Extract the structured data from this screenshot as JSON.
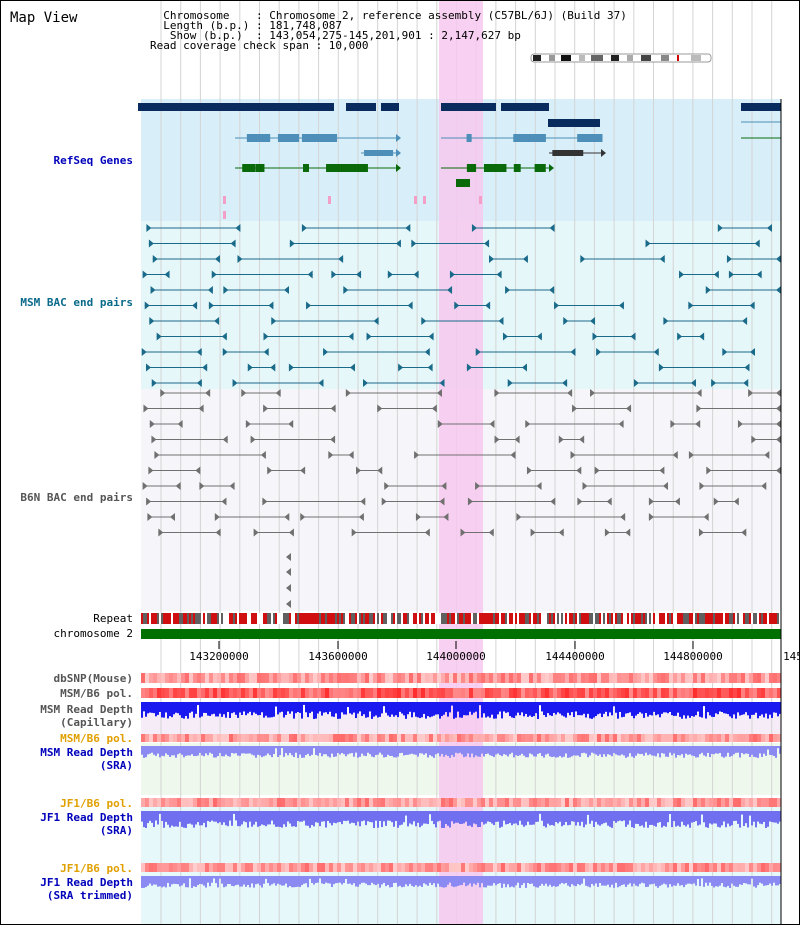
{
  "title": "Map View",
  "info": {
    "lines": [
      "  Chromosome    : Chromosome 2, reference assembly (C57BL/6J) (Build 37)",
      "  Length (b.p.) : 181,748,087",
      "   Show (b.p.)  : 143,054,275-145,201,901 : 2,147,627 bp",
      "Read coverage check span : 10,000"
    ]
  },
  "tracks": {
    "refseq": "RefSeq Genes",
    "msm_bac": "MSM BAC end pairs",
    "b6n_bac": "B6N BAC end pairs",
    "repeat": "Repeat",
    "chromosome": "chromosome 2",
    "dbsnp": "dbSNP(Mouse)",
    "msm_b6_pol": "MSM/B6 pol.",
    "msm_depth_cap_1": "MSM Read Depth",
    "msm_depth_cap_2": "(Capillary)",
    "msm_b6_pol2": "MSM/B6 pol.",
    "msm_depth_sra_1": "MSM Read Depth",
    "msm_depth_sra_2": "(SRA)",
    "jf1_b6_pol": "JF1/B6 pol.",
    "jf1_depth_sra_1": "JF1 Read Depth",
    "jf1_depth_sra_2": "(SRA)",
    "jf1_b6_pol2": "JF1/B6 pol.",
    "jf1_depth_trim_1": "JF1 Read Depth",
    "jf1_depth_trim_2": "(SRA trimmed)"
  },
  "axis": {
    "ticks": [
      "143200000",
      "143600000",
      "144000000",
      "144400000",
      "144800000",
      "145"
    ]
  },
  "colors": {
    "refseq_dark": "#0a2b5e",
    "refseq_mid": "#4d8fb8",
    "refseq_green": "#0a6a0a",
    "msm_bac": "#1a6a8a",
    "b6n_bac": "#707070",
    "highlight": "#f7c8ef",
    "label_blue": "#0000bb",
    "label_teal": "#0a6a8a",
    "label_orange": "#e0a000",
    "label_gray": "#555555"
  }
}
